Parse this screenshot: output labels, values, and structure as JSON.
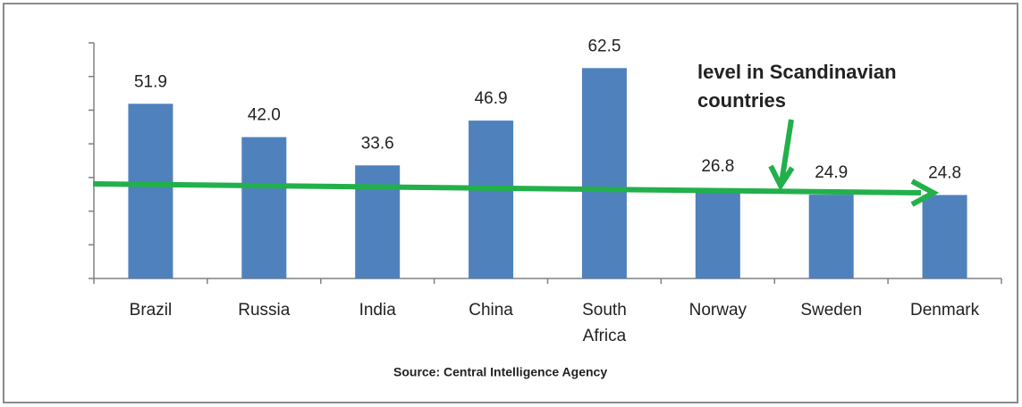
{
  "chart_data": {
    "type": "bar",
    "categories": [
      "Brazil",
      "Russia",
      "India",
      "China",
      "South Africa",
      "Norway",
      "Sweden",
      "Denmark"
    ],
    "values": [
      51.9,
      42.0,
      33.6,
      46.9,
      62.5,
      26.8,
      24.9,
      24.8
    ],
    "value_labels": [
      "51.9",
      "42.0",
      "33.6",
      "46.9",
      "62.5",
      "26.8",
      "24.9",
      "24.8"
    ],
    "color": "#4f81bd",
    "ylim": [
      0,
      70
    ],
    "yticks": [
      0,
      10,
      20,
      30,
      40,
      50,
      60,
      70
    ],
    "grid": false,
    "annotation": [
      "level in Scandinavian",
      "countries"
    ],
    "source": "Source: Central Intelligence Agency"
  }
}
